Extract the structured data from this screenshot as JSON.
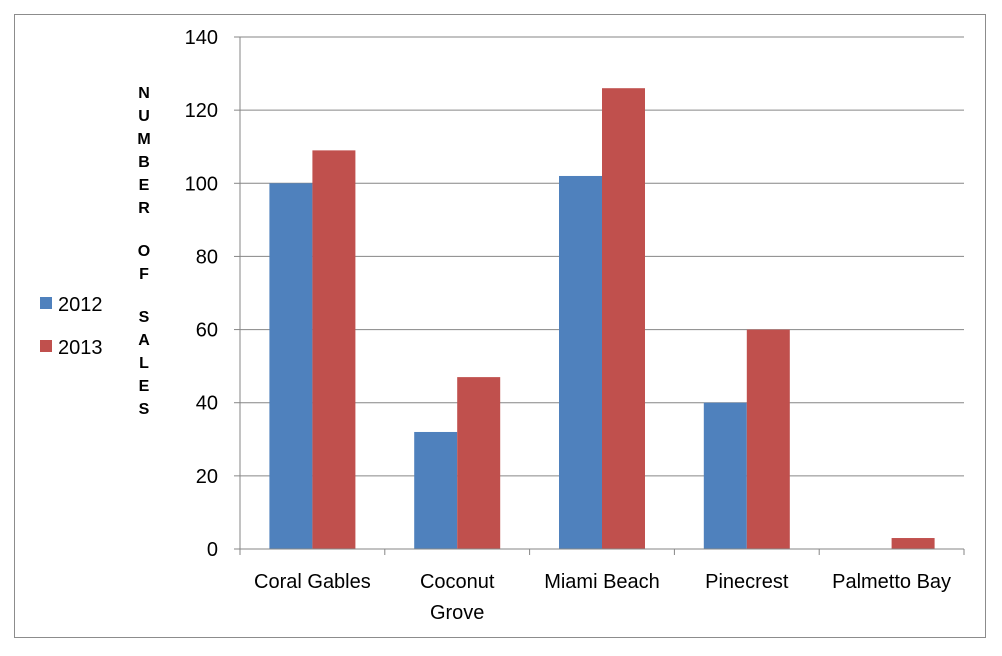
{
  "chart_data": {
    "type": "bar",
    "categories": [
      [
        "Coral Gables"
      ],
      [
        "Coconut",
        "Grove"
      ],
      [
        "Miami Beach"
      ],
      [
        "Pinecrest"
      ],
      [
        "Palmetto Bay"
      ]
    ],
    "series": [
      {
        "name": "2012",
        "color": "#4f81bd",
        "values": [
          100,
          32,
          102,
          40,
          0
        ]
      },
      {
        "name": "2013",
        "color": "#c0504d",
        "values": [
          109,
          47,
          126,
          60,
          3
        ]
      }
    ],
    "ylabel": "NUMBER OF SALES",
    "ylim": [
      0,
      140
    ],
    "yticks": [
      0,
      20,
      40,
      60,
      80,
      100,
      120,
      140
    ],
    "grid": true,
    "legend_position": "left"
  }
}
